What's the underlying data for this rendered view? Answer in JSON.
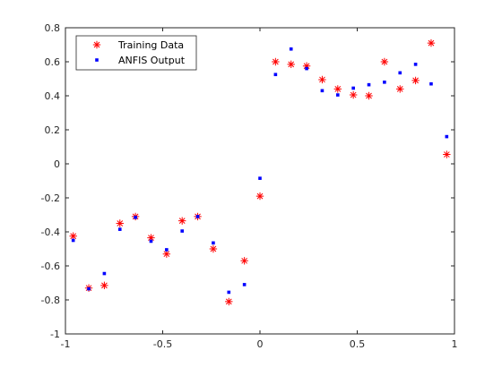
{
  "chart_data": {
    "type": "scatter",
    "xlim": [
      -1,
      1
    ],
    "ylim": [
      -1,
      0.8
    ],
    "xticks": [
      -1,
      -0.5,
      0,
      0.5,
      1
    ],
    "xtick_labels": [
      "-1",
      "-0.5",
      "0",
      "0.5",
      "1"
    ],
    "yticks": [
      -1,
      -0.8,
      -0.6,
      -0.4,
      -0.2,
      0,
      0.2,
      0.4,
      0.6,
      0.8
    ],
    "ytick_labels": [
      "-1",
      "-0.8",
      "-0.6",
      "-0.4",
      "-0.2",
      "0",
      "0.2",
      "0.4",
      "0.6",
      "0.8"
    ],
    "grid": false,
    "legend_position": "top-left",
    "series": [
      {
        "name": "Training Data",
        "marker": "asterisk",
        "color": "#ff0000",
        "x": [
          -0.96,
          -0.88,
          -0.8,
          -0.72,
          -0.64,
          -0.56,
          -0.48,
          -0.4,
          -0.32,
          -0.24,
          -0.16,
          -0.08,
          0.0,
          0.08,
          0.16,
          0.24,
          0.32,
          0.4,
          0.48,
          0.56,
          0.64,
          0.72,
          0.8,
          0.88,
          0.96
        ],
        "y": [
          -0.425,
          -0.73,
          -0.715,
          -0.35,
          -0.31,
          -0.435,
          -0.53,
          -0.335,
          -0.31,
          -0.5,
          -0.81,
          -0.57,
          -0.19,
          0.6,
          0.585,
          0.575,
          0.495,
          0.44,
          0.405,
          0.4,
          0.6,
          0.44,
          0.49,
          0.71,
          0.055
        ]
      },
      {
        "name": "ANFIS Output",
        "marker": "point",
        "color": "#0000ff",
        "x": [
          -0.96,
          -0.88,
          -0.8,
          -0.72,
          -0.64,
          -0.56,
          -0.48,
          -0.4,
          -0.32,
          -0.24,
          -0.16,
          -0.08,
          0.0,
          0.08,
          0.16,
          0.24,
          0.32,
          0.4,
          0.48,
          0.56,
          0.64,
          0.72,
          0.8,
          0.88,
          0.96
        ],
        "y": [
          -0.45,
          -0.735,
          -0.645,
          -0.385,
          -0.315,
          -0.455,
          -0.505,
          -0.395,
          -0.31,
          -0.465,
          -0.755,
          -0.71,
          -0.085,
          0.525,
          0.675,
          0.56,
          0.43,
          0.405,
          0.445,
          0.465,
          0.48,
          0.535,
          0.585,
          0.47,
          0.16
        ]
      }
    ]
  }
}
